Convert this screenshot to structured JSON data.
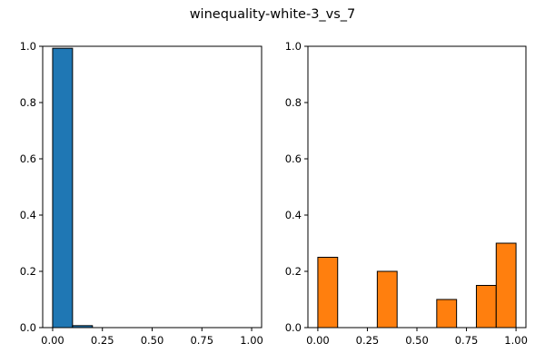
{
  "title": "winequality-white-3_vs_7",
  "chart_data": [
    {
      "type": "bar",
      "color": "#1f77b4",
      "edge_color": "#000000",
      "xlim": [
        -0.05,
        1.05
      ],
      "ylim": [
        0,
        1
      ],
      "xticks": [
        0,
        0.25,
        0.5,
        0.75,
        1
      ],
      "xtick_labels": [
        "0.00",
        "0.25",
        "0.50",
        "0.75",
        "1.00"
      ],
      "yticks": [
        0,
        0.2,
        0.4,
        0.6,
        0.8,
        1
      ],
      "ytick_labels": [
        "0.0",
        "0.2",
        "0.4",
        "0.6",
        "0.8",
        "1.0"
      ],
      "bins": [
        {
          "x0": 0.0,
          "x1": 0.1,
          "value": 0.993
        },
        {
          "x0": 0.1,
          "x1": 0.2,
          "value": 0.007
        },
        {
          "x0": 0.2,
          "x1": 0.3,
          "value": 0
        },
        {
          "x0": 0.3,
          "x1": 0.4,
          "value": 0
        },
        {
          "x0": 0.4,
          "x1": 0.5,
          "value": 0
        },
        {
          "x0": 0.5,
          "x1": 0.6,
          "value": 0
        },
        {
          "x0": 0.6,
          "x1": 0.7,
          "value": 0
        },
        {
          "x0": 0.7,
          "x1": 0.8,
          "value": 0
        },
        {
          "x0": 0.8,
          "x1": 0.9,
          "value": 0
        },
        {
          "x0": 0.9,
          "x1": 1.0,
          "value": 0
        }
      ]
    },
    {
      "type": "bar",
      "color": "#ff7f0e",
      "edge_color": "#000000",
      "xlim": [
        -0.05,
        1.05
      ],
      "ylim": [
        0,
        1
      ],
      "xticks": [
        0,
        0.25,
        0.5,
        0.75,
        1
      ],
      "xtick_labels": [
        "0.00",
        "0.25",
        "0.50",
        "0.75",
        "1.00"
      ],
      "yticks": [
        0,
        0.2,
        0.4,
        0.6,
        0.8,
        1
      ],
      "ytick_labels": [
        "0.0",
        "0.2",
        "0.4",
        "0.6",
        "0.8",
        "1.0"
      ],
      "bins": [
        {
          "x0": 0.0,
          "x1": 0.1,
          "value": 0.25
        },
        {
          "x0": 0.1,
          "x1": 0.2,
          "value": 0
        },
        {
          "x0": 0.2,
          "x1": 0.3,
          "value": 0
        },
        {
          "x0": 0.3,
          "x1": 0.4,
          "value": 0.2
        },
        {
          "x0": 0.4,
          "x1": 0.5,
          "value": 0
        },
        {
          "x0": 0.5,
          "x1": 0.6,
          "value": 0
        },
        {
          "x0": 0.6,
          "x1": 0.7,
          "value": 0.1
        },
        {
          "x0": 0.7,
          "x1": 0.8,
          "value": 0
        },
        {
          "x0": 0.8,
          "x1": 0.9,
          "value": 0.15
        },
        {
          "x0": 0.9,
          "x1": 1.0,
          "value": 0.3
        }
      ]
    }
  ]
}
